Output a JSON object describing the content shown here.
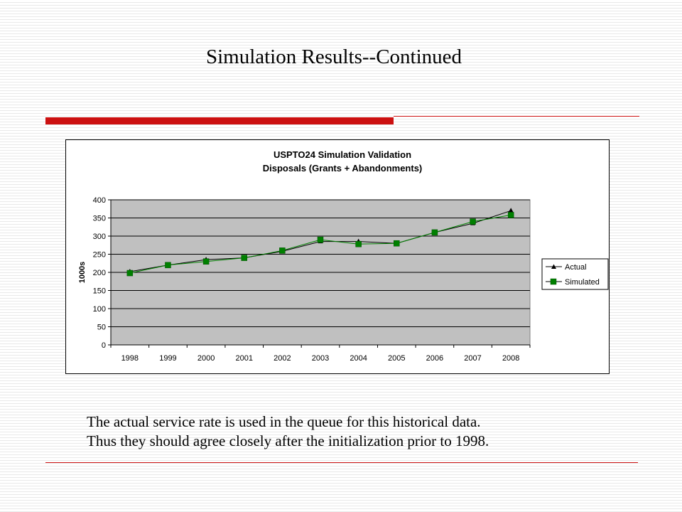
{
  "slide": {
    "title": "Simulation Results--Continued",
    "body_lines": [
      "The actual service rate is used in the queue for this historical data.",
      "Thus they should agree closely after the initialization prior to 1998."
    ]
  },
  "colors": {
    "accent_rule": "#cc1111",
    "plot_background": "#c0c0c0",
    "actual_series": "#000000",
    "simulated_series": "#008000"
  },
  "chart_data": {
    "type": "line",
    "title": "USPTO24 Simulation Validation",
    "subtitle": "Disposals (Grants + Abandonments)",
    "xlabel": "",
    "ylabel": "1000s",
    "categories": [
      "1998",
      "1999",
      "2000",
      "2001",
      "2002",
      "2003",
      "2004",
      "2005",
      "2006",
      "2007",
      "2008"
    ],
    "ylim": [
      0,
      400
    ],
    "yticks": [
      0,
      50,
      100,
      150,
      200,
      250,
      300,
      350,
      400
    ],
    "grid": true,
    "legend_position": "right",
    "series": [
      {
        "name": "Actual",
        "marker": "triangle",
        "color": "#000000",
        "values": [
          202,
          220,
          235,
          240,
          258,
          285,
          285,
          280,
          310,
          335,
          370
        ]
      },
      {
        "name": "Simulated",
        "marker": "square",
        "color": "#008000",
        "values": [
          198,
          220,
          230,
          240,
          260,
          290,
          278,
          280,
          310,
          340,
          358
        ]
      }
    ]
  }
}
